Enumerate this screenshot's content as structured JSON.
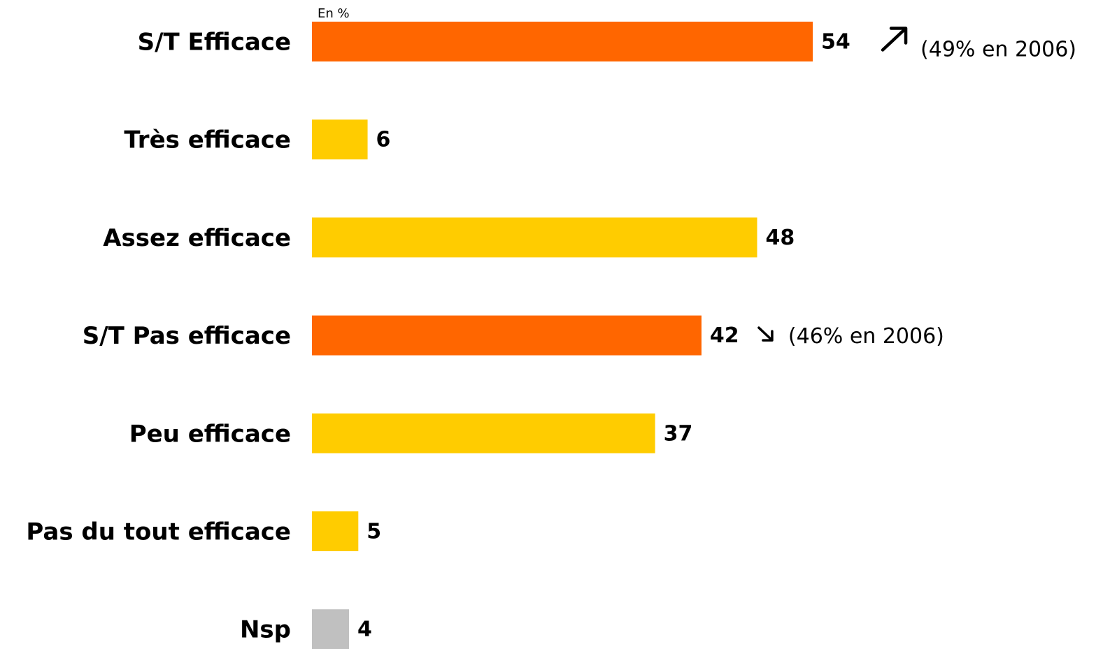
{
  "chart_data": {
    "type": "bar",
    "orientation": "horizontal",
    "unit_label": "En %",
    "categories": [
      "S/T Efficace",
      "Très efficace",
      "Assez efficace",
      "S/T Pas efficace",
      "Peu efficace",
      "Pas du tout efficace",
      "Nsp"
    ],
    "values": [
      54,
      6,
      48,
      42,
      37,
      5,
      4
    ],
    "colors": [
      "#FF6600",
      "#FFCC00",
      "#FFCC00",
      "#FF6600",
      "#FFCC00",
      "#FFCC00",
      "#C0C0C0"
    ],
    "xlim": [
      0,
      100
    ],
    "grid": false,
    "legend": "none",
    "annotations": [
      {
        "category": "S/T Efficace",
        "trend": "up",
        "arrow": "↗",
        "text": "(49% en 2006)"
      },
      {
        "category": "S/T Pas efficace",
        "trend": "down",
        "arrow": "↘",
        "text": "(46% en 2006)"
      }
    ]
  }
}
